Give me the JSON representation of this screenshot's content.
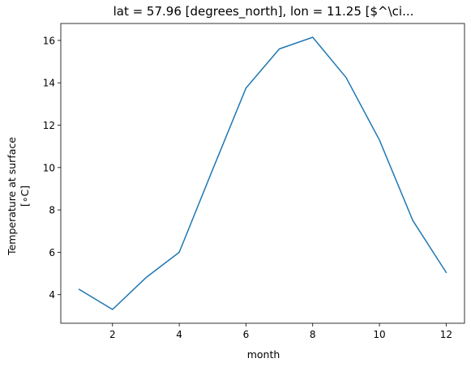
{
  "chart_data": {
    "type": "line",
    "title": "lat = 57.96 [degrees_north], lon = 11.25 [$^\\ci...",
    "xlabel": "month",
    "ylabel_lines": [
      "Temperature at surface",
      "[$^\\circ$C]"
    ],
    "ylabel_display_unit": "[∘C]",
    "xlim": [
      0.45,
      12.55
    ],
    "ylim": [
      2.65,
      16.8
    ],
    "xticks": [
      2,
      4,
      6,
      8,
      10,
      12
    ],
    "yticks": [
      4,
      6,
      8,
      10,
      12,
      14,
      16
    ],
    "grid": false,
    "series": [
      {
        "color": "#1f77b4",
        "x": [
          1,
          2,
          3,
          4,
          5,
          6,
          7,
          8,
          9,
          10,
          11,
          12
        ],
        "values": [
          4.25,
          3.3,
          4.8,
          6.0,
          9.9,
          13.75,
          15.6,
          16.15,
          14.25,
          11.3,
          7.5,
          5.05
        ]
      }
    ]
  }
}
